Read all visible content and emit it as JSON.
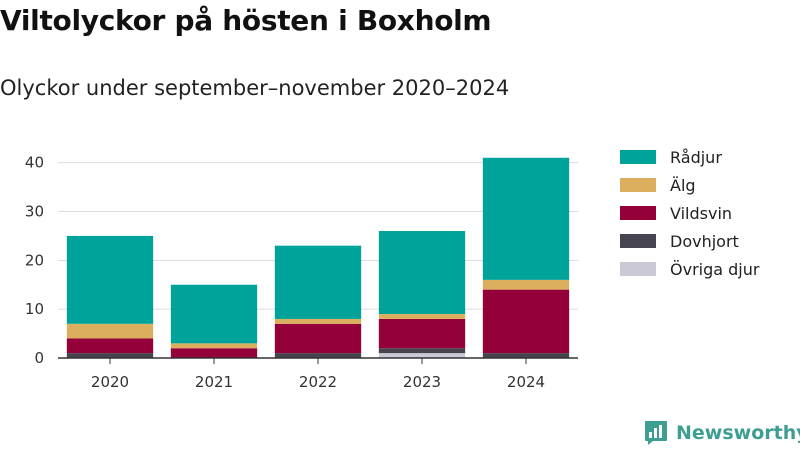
{
  "header": {
    "title": "Viltolyckor på hösten i Boxholm",
    "subtitle": "Olyckor under september–november 2020–2024"
  },
  "brand": {
    "name": "Newsworthy",
    "color": "#3e9e92"
  },
  "chart_data": {
    "type": "bar",
    "stacked": true,
    "title": "Viltolyckor på hösten i Boxholm",
    "subtitle": "Olyckor under september–november 2020–2024",
    "xlabel": "",
    "ylabel": "",
    "categories": [
      "2020",
      "2021",
      "2022",
      "2023",
      "2024"
    ],
    "ylim": [
      0,
      43
    ],
    "yticks": [
      0,
      10,
      20,
      30,
      40
    ],
    "grid": true,
    "legend_position": "right",
    "series": [
      {
        "name": "Övriga djur",
        "color": "#cbc9d6",
        "values": [
          0,
          0,
          0,
          1,
          0
        ]
      },
      {
        "name": "Dovhjort",
        "color": "#45444f",
        "values": [
          1,
          0,
          1,
          1,
          1
        ]
      },
      {
        "name": "Vildsvin",
        "color": "#93003a",
        "values": [
          3,
          2,
          6,
          6,
          13
        ]
      },
      {
        "name": "Älg",
        "color": "#dcaf5e",
        "values": [
          3,
          1,
          1,
          1,
          2
        ]
      },
      {
        "name": "Rådjur",
        "color": "#00a39a",
        "values": [
          18,
          12,
          15,
          17,
          25
        ]
      }
    ],
    "legend_order": [
      "Rådjur",
      "Älg",
      "Vildsvin",
      "Dovhjort",
      "Övriga djur"
    ]
  }
}
